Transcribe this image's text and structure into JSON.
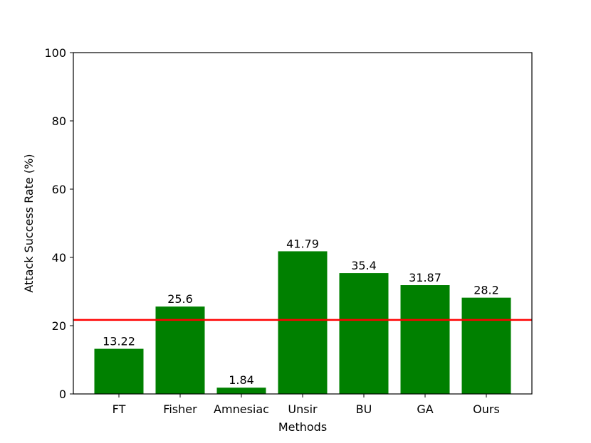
{
  "chart_data": {
    "type": "bar",
    "xlabel": "Methods",
    "ylabel": "Attack Success Rate (%)",
    "ylim": [
      0,
      100
    ],
    "yticks": [
      0,
      20,
      40,
      60,
      80,
      100
    ],
    "categories": [
      "FT",
      "Fisher",
      "Amnesiac",
      "Unsir",
      "BU",
      "GA",
      "Ours"
    ],
    "values": [
      13.22,
      25.6,
      1.84,
      41.79,
      35.4,
      31.87,
      28.2
    ],
    "value_labels": [
      "13.22",
      "25.6",
      "1.84",
      "41.79",
      "35.4",
      "31.87",
      "28.2"
    ],
    "bar_color": "#008000",
    "reference_line": {
      "y": 21.7,
      "color": "#ff0000"
    },
    "grid": false,
    "legend": "none"
  }
}
